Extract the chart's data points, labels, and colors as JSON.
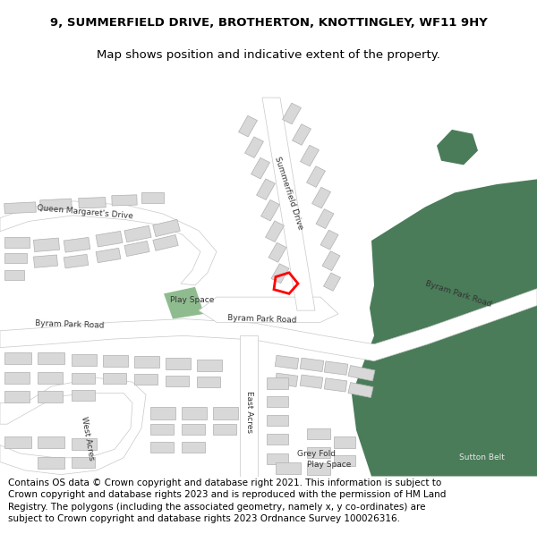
{
  "title_line1": "9, SUMMERFIELD DRIVE, BROTHERTON, KNOTTINGLEY, WF11 9HY",
  "title_line2": "Map shows position and indicative extent of the property.",
  "footer_text": "Contains OS data © Crown copyright and database right 2021. This information is subject to Crown copyright and database rights 2023 and is reproduced with the permission of HM Land Registry. The polygons (including the associated geometry, namely x, y co-ordinates) are subject to Crown copyright and database rights 2023 Ordnance Survey 100026316.",
  "title_fontsize": 9.5,
  "footer_fontsize": 7.5,
  "map_bg": "#f0eff0",
  "fig_width": 6.0,
  "fig_height": 6.25,
  "dpi": 100,
  "building_color": "#d8d8d8",
  "building_outline": "#b0b0b0",
  "green_light": "#8fbc8f",
  "green_dark": "#4a7c59",
  "road_color": "#ffffff",
  "road_outline": "#c8c8c8"
}
